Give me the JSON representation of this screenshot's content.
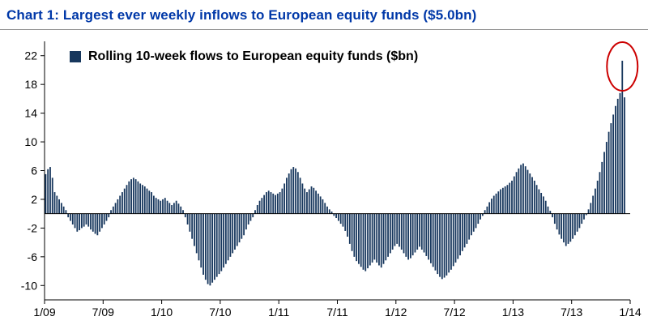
{
  "header": {
    "title": "Chart 1: Largest ever weekly inflows to European equity funds ($5.0bn)",
    "title_color": "#0038a8"
  },
  "chart_data": {
    "type": "bar",
    "title": "Chart 1: Largest ever weekly inflows to European equity funds ($5.0bn)",
    "legend": "Rolling 10-week flows to European equity funds ($bn)",
    "legend_position": "top-left-inside",
    "bar_color": "#17375d",
    "grid": false,
    "x_unit": "weekly",
    "x_tick_labels": [
      "1/09",
      "7/09",
      "1/10",
      "7/10",
      "1/11",
      "7/11",
      "1/12",
      "7/12",
      "1/13",
      "7/13",
      "1/14"
    ],
    "x_tick_weeks": [
      0,
      26,
      52,
      78,
      104,
      130,
      156,
      182,
      208,
      234,
      260
    ],
    "x_total_weeks": 260,
    "y_ticks": [
      22,
      18,
      14,
      10,
      6,
      2,
      -2,
      -6,
      -10
    ],
    "ylim": [
      -12,
      24
    ],
    "ylabel": "",
    "xlabel": "",
    "annotation": {
      "shape": "ellipse",
      "color": "#cc0000",
      "target": "peak bar (21.3)"
    },
    "values": [
      5.5,
      6.2,
      6.5,
      5.0,
      3.0,
      2.5,
      2.0,
      1.5,
      1.0,
      0.5,
      -0.5,
      -1.0,
      -1.5,
      -2.0,
      -2.5,
      -2.3,
      -2.0,
      -1.8,
      -1.5,
      -1.8,
      -2.2,
      -2.5,
      -2.8,
      -3.0,
      -2.5,
      -2.0,
      -1.5,
      -1.0,
      -0.5,
      0.5,
      1.0,
      1.5,
      2.0,
      2.5,
      3.0,
      3.5,
      4.0,
      4.5,
      4.8,
      5.0,
      4.8,
      4.5,
      4.2,
      4.0,
      3.8,
      3.5,
      3.2,
      3.0,
      2.5,
      2.2,
      2.0,
      1.8,
      2.0,
      2.2,
      1.8,
      1.5,
      1.2,
      1.5,
      1.8,
      1.4,
      1.0,
      0.5,
      -0.5,
      -1.5,
      -2.5,
      -3.5,
      -4.5,
      -5.5,
      -6.5,
      -7.5,
      -8.5,
      -9.2,
      -9.8,
      -10.0,
      -9.6,
      -9.2,
      -8.8,
      -8.4,
      -8.0,
      -7.5,
      -7.0,
      -6.5,
      -6.0,
      -5.5,
      -5.0,
      -4.5,
      -4.0,
      -3.5,
      -3.0,
      -2.2,
      -1.5,
      -1.0,
      -0.5,
      0.5,
      1.2,
      1.8,
      2.2,
      2.6,
      3.0,
      3.2,
      3.0,
      2.8,
      2.6,
      2.8,
      3.0,
      3.5,
      4.2,
      5.0,
      5.6,
      6.2,
      6.5,
      6.3,
      5.8,
      5.0,
      4.2,
      3.5,
      3.0,
      3.4,
      3.8,
      3.6,
      3.2,
      2.8,
      2.4,
      2.0,
      1.5,
      1.0,
      0.6,
      0.3,
      -0.3,
      -0.6,
      -1.0,
      -1.4,
      -1.8,
      -2.4,
      -3.2,
      -4.2,
      -5.2,
      -6.0,
      -6.6,
      -7.0,
      -7.4,
      -7.8,
      -8.0,
      -7.6,
      -7.2,
      -6.8,
      -6.4,
      -6.8,
      -7.2,
      -7.5,
      -7.0,
      -6.5,
      -6.0,
      -5.5,
      -5.0,
      -4.5,
      -4.2,
      -4.6,
      -5.0,
      -5.5,
      -6.0,
      -6.4,
      -6.2,
      -5.8,
      -5.4,
      -5.0,
      -4.6,
      -5.0,
      -5.4,
      -5.9,
      -6.4,
      -6.9,
      -7.4,
      -7.9,
      -8.4,
      -8.8,
      -9.1,
      -8.9,
      -8.6,
      -8.2,
      -7.8,
      -7.3,
      -6.8,
      -6.3,
      -5.8,
      -5.2,
      -4.7,
      -4.2,
      -3.6,
      -3.0,
      -2.5,
      -2.0,
      -1.4,
      -0.8,
      -0.3,
      0.5,
      1.0,
      1.6,
      2.1,
      2.5,
      2.8,
      3.1,
      3.4,
      3.6,
      3.8,
      4.0,
      4.3,
      4.6,
      5.2,
      5.8,
      6.3,
      6.8,
      7.0,
      6.6,
      6.1,
      5.6,
      5.1,
      4.6,
      4.0,
      3.4,
      2.9,
      2.4,
      1.8,
      1.0,
      0.4,
      -0.5,
      -1.4,
      -2.2,
      -2.9,
      -3.5,
      -4.0,
      -4.5,
      -4.2,
      -3.9,
      -3.5,
      -3.0,
      -2.5,
      -2.0,
      -1.4,
      -0.8,
      -0.2,
      0.6,
      1.5,
      2.5,
      3.5,
      4.6,
      5.8,
      7.2,
      8.6,
      10.0,
      11.4,
      12.6,
      13.8,
      15.0,
      16.0,
      16.8,
      21.3,
      16.2
    ]
  }
}
